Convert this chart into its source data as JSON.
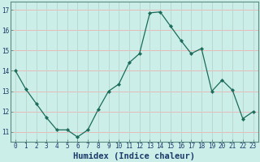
{
  "x": [
    0,
    1,
    2,
    3,
    4,
    5,
    6,
    7,
    8,
    9,
    10,
    11,
    12,
    13,
    14,
    15,
    16,
    17,
    18,
    19,
    20,
    21,
    22,
    23
  ],
  "y": [
    14.0,
    13.1,
    12.4,
    11.7,
    11.1,
    11.1,
    10.75,
    11.1,
    12.1,
    13.0,
    13.35,
    14.4,
    14.85,
    16.85,
    16.9,
    16.2,
    15.5,
    14.85,
    15.1,
    13.0,
    13.55,
    13.05,
    11.65,
    12.0
  ],
  "xlabel": "Humidex (Indice chaleur)",
  "line_color": "#1a6b5a",
  "marker_color": "#1a6b5a",
  "bg_color": "#cceee8",
  "hgrid_color": "#e8b8b8",
  "vgrid_color": "#b8d8d0",
  "spine_color": "#5a8a80",
  "xlabel_color": "#1a3a6a",
  "tick_color": "#1a3a6a",
  "ylim_min": 10.5,
  "ylim_max": 17.4,
  "xlim_min": -0.5,
  "xlim_max": 23.5,
  "yticks": [
    11,
    12,
    13,
    14,
    15,
    16,
    17
  ],
  "xticks": [
    0,
    1,
    2,
    3,
    4,
    5,
    6,
    7,
    8,
    9,
    10,
    11,
    12,
    13,
    14,
    15,
    16,
    17,
    18,
    19,
    20,
    21,
    22,
    23
  ],
  "tick_fontsize": 5.5,
  "xlabel_fontsize": 7.5
}
